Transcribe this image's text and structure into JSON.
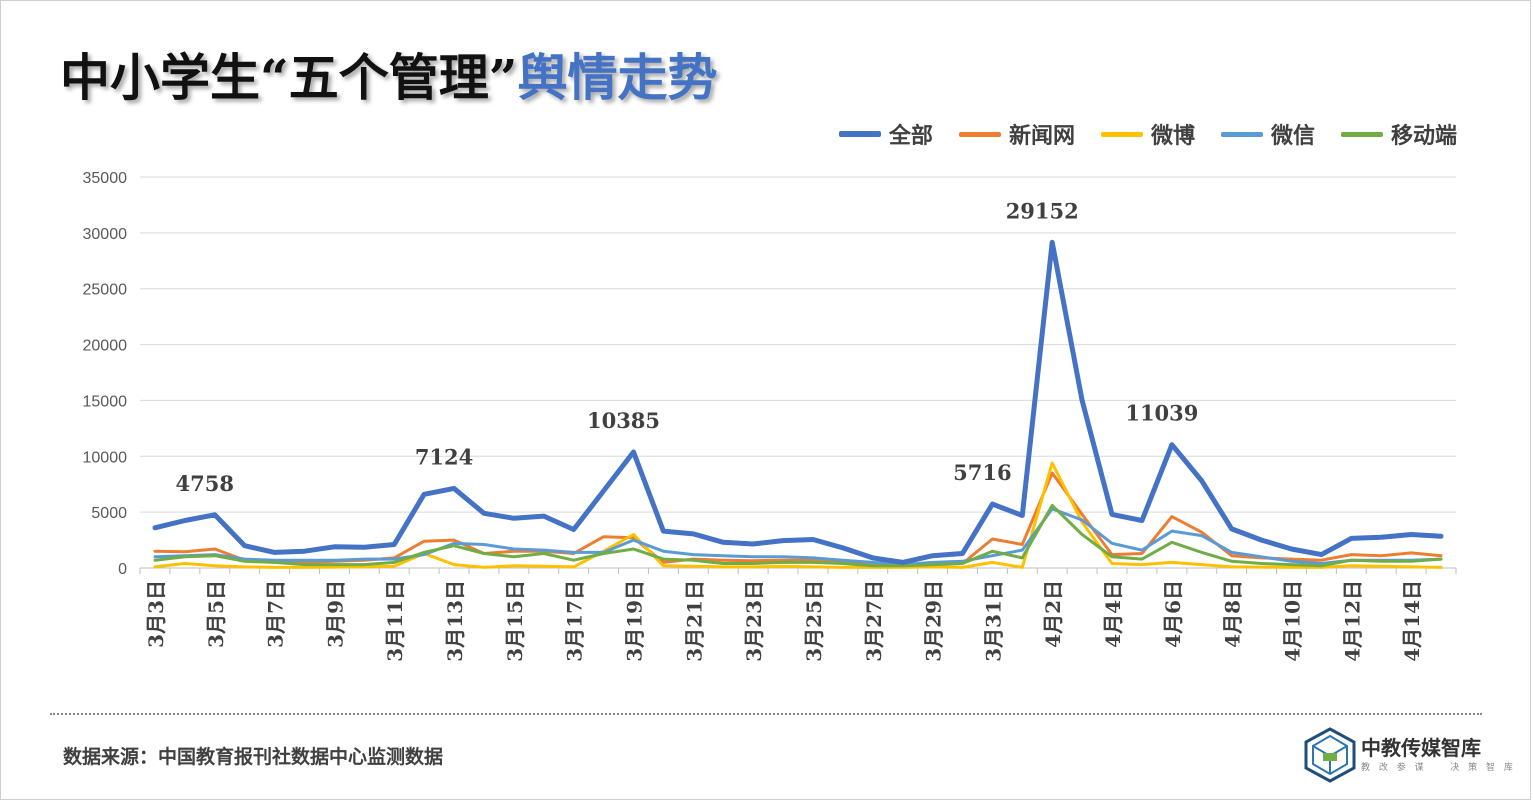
{
  "title": {
    "part1": "中小学生“五个管理”",
    "part2": "舆情走势"
  },
  "source": "数据来源：中国教育报刊社数据中心监测数据",
  "logo": {
    "name": "中教传媒智库",
    "tagline": "教 改 参 谋 　 决 策 智 库"
  },
  "chart_data": {
    "type": "line",
    "title": "",
    "xlabel": "",
    "ylabel": "",
    "ylim": [
      0,
      35000
    ],
    "yticks": [
      0,
      5000,
      10000,
      15000,
      20000,
      25000,
      30000,
      35000
    ],
    "grid": true,
    "legend_position": "top-right",
    "categories": [
      "3月3日",
      "3月4日",
      "3月5日",
      "3月6日",
      "3月7日",
      "3月8日",
      "3月9日",
      "3月10日",
      "3月11日",
      "3月12日",
      "3月13日",
      "3月14日",
      "3月15日",
      "3月16日",
      "3月17日",
      "3月18日",
      "3月19日",
      "3月20日",
      "3月21日",
      "3月22日",
      "3月23日",
      "3月24日",
      "3月25日",
      "3月26日",
      "3月27日",
      "3月28日",
      "3月29日",
      "3月30日",
      "3月31日",
      "4月1日",
      "4月2日",
      "4月3日",
      "4月4日",
      "4月5日",
      "4月6日",
      "4月7日",
      "4月8日",
      "4月9日",
      "4月10日",
      "4月11日",
      "4月12日",
      "4月13日",
      "4月14日",
      "4月15日"
    ],
    "tick_labels": [
      "3月3日",
      "3月5日",
      "3月7日",
      "3月9日",
      "3月11日",
      "3月13日",
      "3月15日",
      "3月17日",
      "3月19日",
      "3月21日",
      "3月23日",
      "3月25日",
      "3月27日",
      "3月29日",
      "3月31日",
      "4月2日",
      "4月4日",
      "4月6日",
      "4月8日",
      "4月10日",
      "4月12日",
      "4月14日"
    ],
    "series": [
      {
        "name": "全部",
        "color": "#4472c4",
        "values": [
          3600,
          4250,
          4758,
          2000,
          1400,
          1500,
          1900,
          1850,
          2100,
          6600,
          7124,
          4900,
          4450,
          4650,
          3450,
          6900,
          10385,
          3300,
          3050,
          2300,
          2150,
          2450,
          2550,
          1800,
          900,
          500,
          1100,
          1300,
          5716,
          4700,
          29152,
          15000,
          4800,
          4250,
          11039,
          7800,
          3500,
          2500,
          1700,
          1200,
          2650,
          2750,
          3000,
          2850
        ],
        "labels": [
          {
            "index": 2,
            "text": "4758"
          },
          {
            "index": 10,
            "text": "7124"
          },
          {
            "index": 16,
            "text": "10385"
          },
          {
            "index": 28,
            "text": "5716"
          },
          {
            "index": 30,
            "text": "29152"
          },
          {
            "index": 34,
            "text": "11039"
          }
        ]
      },
      {
        "name": "新闻网",
        "color": "#ed7d31",
        "values": [
          1500,
          1450,
          1700,
          700,
          500,
          500,
          600,
          700,
          900,
          2400,
          2500,
          1300,
          1500,
          1500,
          1300,
          2800,
          2700,
          500,
          800,
          700,
          650,
          700,
          700,
          600,
          300,
          200,
          400,
          400,
          2600,
          2100,
          8500,
          4800,
          1200,
          1300,
          4600,
          3200,
          1100,
          900,
          800,
          700,
          1200,
          1100,
          1350,
          1100
        ]
      },
      {
        "name": "微博",
        "color": "#ffc000",
        "values": [
          100,
          400,
          200,
          100,
          50,
          50,
          80,
          100,
          150,
          1300,
          300,
          50,
          200,
          150,
          100,
          1500,
          3000,
          200,
          150,
          100,
          100,
          150,
          100,
          50,
          50,
          50,
          100,
          50,
          500,
          50,
          9400,
          4100,
          400,
          300,
          500,
          300,
          100,
          80,
          50,
          50,
          200,
          150,
          100,
          50
        ]
      },
      {
        "name": "微信",
        "color": "#5b9bd5",
        "values": [
          1000,
          1100,
          1200,
          800,
          700,
          700,
          700,
          800,
          800,
          1200,
          2200,
          2100,
          1700,
          1600,
          1400,
          1400,
          2500,
          1500,
          1200,
          1100,
          1000,
          1000,
          900,
          700,
          500,
          300,
          500,
          600,
          1100,
          1600,
          5300,
          4300,
          2200,
          1600,
          3300,
          2900,
          1400,
          1000,
          600,
          400,
          700,
          700,
          700,
          800
        ]
      },
      {
        "name": "移动端",
        "color": "#70ad47",
        "values": [
          700,
          1000,
          1100,
          600,
          500,
          300,
          300,
          300,
          500,
          1400,
          2000,
          1300,
          1000,
          1300,
          700,
          1300,
          1700,
          800,
          700,
          400,
          400,
          500,
          500,
          400,
          200,
          200,
          300,
          400,
          1500,
          900,
          5600,
          3000,
          1000,
          800,
          2300,
          1400,
          600,
          400,
          300,
          200,
          700,
          600,
          600,
          800
        ]
      }
    ]
  }
}
